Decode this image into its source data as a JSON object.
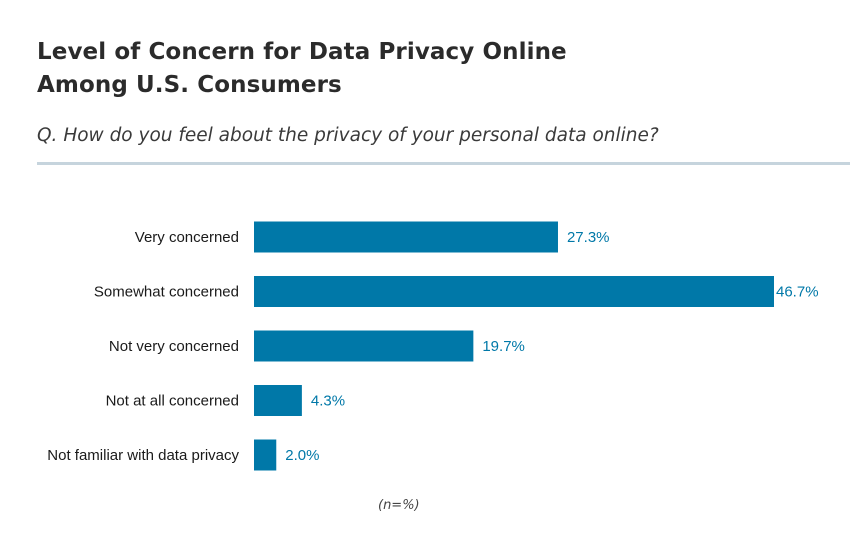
{
  "title_lines": [
    "Level of Concern for Data Privacy Online",
    "Among U.S. Consumers"
  ],
  "question": "Q. How do you feel about the privacy of your personal data online?",
  "footnote": "(n=%)",
  "colors": {
    "bar": "#0078a8",
    "value_label": "#0078a8",
    "category_label": "#1a1a1a",
    "rule": "#c6d4dd"
  },
  "chart_data": {
    "type": "bar",
    "orientation": "horizontal",
    "categories": [
      "Very concerned",
      "Somewhat concerned",
      "Not very concerned",
      "Not at all concerned",
      "Not familiar with data privacy"
    ],
    "values": [
      27.3,
      46.7,
      19.7,
      4.3,
      2.0
    ],
    "value_labels": [
      "27.3%",
      "46.7%",
      "19.7%",
      "4.3%",
      "2.0%"
    ],
    "title": "Level of Concern for Data Privacy Online Among U.S. Consumers",
    "xlabel": "",
    "ylabel": "",
    "xlim": [
      0,
      46.7
    ],
    "grid": false,
    "legend": "none"
  }
}
